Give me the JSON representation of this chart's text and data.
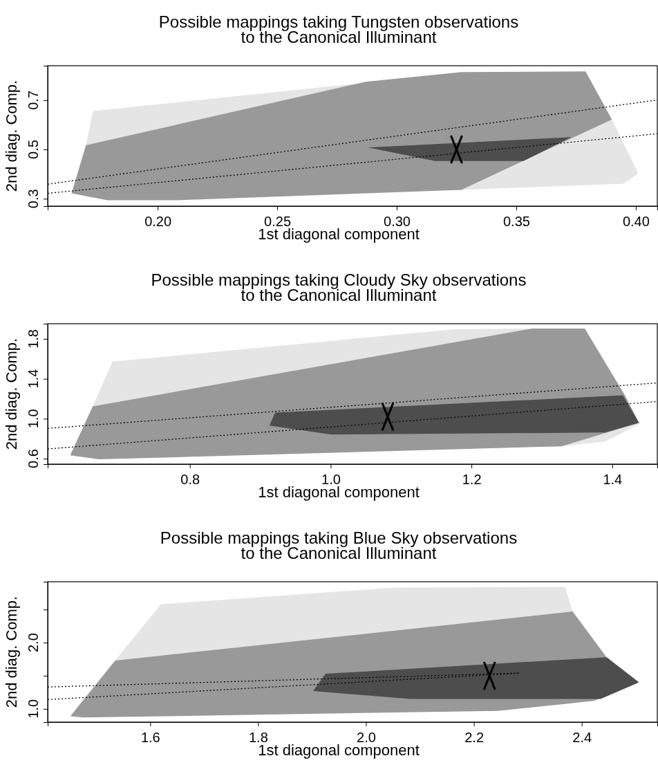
{
  "chart_data": [
    {
      "type": "area",
      "title": "Possible mappings taking Tungsten observations\nto the Canonical Illuminant",
      "xlabel": "1st diagonal component",
      "ylabel": "2nd diag. Comp.",
      "xlim": [
        0.154,
        0.409
      ],
      "ylim": [
        0.27,
        0.84
      ],
      "xticks": [
        {
          "value": 0.2,
          "label": "0.20"
        },
        {
          "value": 0.25,
          "label": "0.25"
        },
        {
          "value": 0.3,
          "label": "0.30"
        },
        {
          "value": 0.35,
          "label": "0.35"
        },
        {
          "value": 0.4,
          "label": "0.40"
        }
      ],
      "yticks": [
        0.3,
        0.5,
        0.7
      ],
      "series": [
        {
          "color": "#e5e5e5",
          "x": [
            0.164,
            0.17,
            0.173,
            0.285,
            0.39,
            0.401,
            0.395,
            0.327
          ],
          "values": [
            0.322,
            0.517,
            0.656,
            0.769,
            0.622,
            0.403,
            0.361,
            0.336
          ]
        },
        {
          "color": "#999999",
          "x": [
            0.164,
            0.17,
            0.287,
            0.327,
            0.379,
            0.39,
            0.327,
            0.208,
            0.179
          ],
          "values": [
            0.322,
            0.517,
            0.775,
            0.814,
            0.817,
            0.622,
            0.336,
            0.294,
            0.294
          ]
        },
        {
          "color": "#4d4d4d",
          "x": [
            0.288,
            0.373,
            0.353,
            0.316
          ],
          "values": [
            0.508,
            0.55,
            0.453,
            0.453
          ]
        },
        {
          "type": "line",
          "color": "#000000",
          "line_style": "dotted",
          "x": [
            0.154,
            0.409
          ],
          "values": [
            0.359,
            0.701
          ]
        },
        {
          "type": "line",
          "color": "#000000",
          "line_style": "dotted",
          "x": [
            0.154,
            0.409
          ],
          "values": [
            0.322,
            0.564
          ]
        },
        {
          "type": "scatter",
          "color": "#000000",
          "marker": "cross",
          "x": [
            0.325
          ],
          "values": [
            0.5
          ]
        }
      ]
    },
    {
      "type": "area",
      "title": "Possible mappings taking Cloudy Sky observations\nto the Canonical Illuminant",
      "xlabel": "1st diagonal component",
      "ylabel": "2nd diag. Comp.",
      "xlim": [
        0.598,
        1.464
      ],
      "ylim": [
        0.545,
        1.952
      ],
      "xticks": [
        {
          "value": 0.8,
          "label": "0.8"
        },
        {
          "value": 1,
          "label": "1.0"
        },
        {
          "value": 1.2,
          "label": "1.2"
        },
        {
          "value": 1.4,
          "label": "1.4"
        }
      ],
      "yticks": [
        0.6,
        {
          "value": 1,
          "label": "1.0"
        },
        1.4,
        1.8
      ],
      "series": [
        {
          "color": "#e5e5e5",
          "x": [
            0.63,
            0.662,
            0.69,
            1.176,
            1.286,
            1.44,
            1.39,
            1.328
          ],
          "values": [
            0.634,
            1.124,
            1.572,
            1.897,
            1.903,
            0.952,
            0.772,
            0.724
          ]
        },
        {
          "color": "#999999",
          "x": [
            0.63,
            0.662,
            1.286,
            1.361,
            1.418,
            1.438,
            1.328,
            0.671
          ],
          "values": [
            0.634,
            1.124,
            1.903,
            1.903,
            1.234,
            0.959,
            0.724,
            0.593
          ]
        },
        {
          "color": "#4d4d4d",
          "x": [
            0.913,
            0.921,
            1.415,
            1.438,
            1.39,
            1.001
          ],
          "values": [
            0.931,
            1.062,
            1.234,
            0.959,
            0.862,
            0.841
          ]
        },
        {
          "type": "line",
          "color": "#000000",
          "line_style": "dotted",
          "x": [
            0.598,
            1.464
          ],
          "values": [
            0.903,
            1.359
          ]
        },
        {
          "type": "line",
          "color": "#000000",
          "line_style": "dotted",
          "x": [
            0.598,
            1.464
          ],
          "values": [
            0.697,
            1.172
          ]
        },
        {
          "type": "scatter",
          "color": "#000000",
          "marker": "cross",
          "x": [
            1.081
          ],
          "values": [
            1.021
          ]
        }
      ]
    },
    {
      "type": "area",
      "title": "Possible mappings taking Blue Sky observations\nto the Canonical Illuminant",
      "xlabel": "1st diagonal component",
      "ylabel": "2nd diag. Comp.",
      "xlim": [
        1.41,
        2.54
      ],
      "ylim": [
        0.8,
        2.92
      ],
      "xticks": [
        1.6,
        1.8,
        {
          "value": 2,
          "label": "2.0"
        },
        2.2,
        2.4
      ],
      "yticks": [
        {
          "value": 1,
          "label": "1.0"
        },
        {
          "value": 1.5,
          "label": null
        },
        {
          "value": 2,
          "label": "2.0"
        },
        {
          "value": 2.5,
          "label": null
        }
      ],
      "series": [
        {
          "color": "#e5e5e5",
          "x": [
            1.535,
            1.62,
            2.051,
            2.369,
            2.383
          ],
          "values": [
            1.73,
            2.58,
            2.83,
            2.84,
            2.47
          ]
        },
        {
          "color": "#999999",
          "x": [
            1.452,
            1.535,
            2.383,
            2.446,
            2.506,
            2.423,
            2.245,
            1.476
          ],
          "values": [
            0.89,
            1.73,
            2.47,
            1.78,
            1.4,
            1.12,
            0.97,
            0.87
          ]
        },
        {
          "color": "#4d4d4d",
          "x": [
            1.902,
            1.925,
            2.446,
            2.506,
            2.435,
            2.082
          ],
          "values": [
            1.27,
            1.53,
            1.78,
            1.4,
            1.15,
            1.15
          ]
        },
        {
          "type": "line",
          "color": "#000000",
          "line_style": "dotted",
          "x": [
            1.41,
            2.284
          ],
          "values": [
            1.33,
            1.54
          ]
        },
        {
          "type": "line",
          "color": "#000000",
          "line_style": "dotted",
          "x": [
            1.41,
            2.284
          ],
          "values": [
            1.14,
            1.54
          ]
        },
        {
          "type": "scatter",
          "color": "#000000",
          "marker": "cross",
          "x": [
            2.229
          ],
          "values": [
            1.5
          ]
        }
      ]
    }
  ]
}
